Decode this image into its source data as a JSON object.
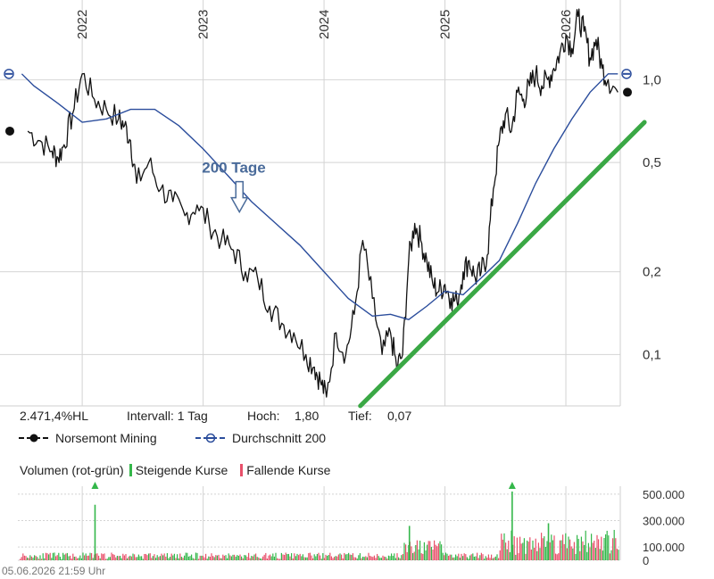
{
  "chart_data": {
    "type": "line",
    "y_scale": "log",
    "ylim": [
      0.07,
      1.8
    ],
    "x_tick_labels": [
      "2022",
      "2023",
      "2024",
      "2025",
      "2026"
    ],
    "y_tick_labels": [
      "1,0",
      "0,5",
      "0,2",
      "0,1"
    ],
    "y_tick_values": [
      1.0,
      0.5,
      0.2,
      0.1
    ],
    "grid": true,
    "series": [
      {
        "name": "Norsemont Mining",
        "color": "#111111",
        "x": [
          2021.55,
          2021.65,
          2021.75,
          2021.8,
          2021.85,
          2021.92,
          2022.0,
          2022.1,
          2022.2,
          2022.3,
          2022.35,
          2022.4,
          2022.45,
          2022.55,
          2022.65,
          2022.75,
          2022.85,
          2022.95,
          2023.05,
          2023.15,
          2023.25,
          2023.35,
          2023.45,
          2023.55,
          2023.65,
          2023.75,
          2023.85,
          2023.92,
          2023.97,
          2024.02,
          2024.1,
          2024.18,
          2024.25,
          2024.32,
          2024.4,
          2024.48,
          2024.55,
          2024.6,
          2024.65,
          2024.7,
          2024.75,
          2024.8,
          2024.85,
          2024.9,
          2024.95,
          2025.0,
          2025.05,
          2025.1,
          2025.15,
          2025.2,
          2025.25,
          2025.3,
          2025.35,
          2025.4,
          2025.45,
          2025.5,
          2025.55,
          2025.6,
          2025.65,
          2025.7,
          2025.75,
          2025.8,
          2025.85,
          2025.9,
          2025.95,
          2026.0,
          2026.05,
          2026.1,
          2026.15,
          2026.2,
          2026.25,
          2026.3,
          2026.35,
          2026.43
        ],
        "values": [
          0.65,
          0.6,
          0.55,
          0.52,
          0.58,
          0.75,
          1.05,
          0.85,
          0.78,
          0.72,
          0.68,
          0.6,
          0.42,
          0.5,
          0.4,
          0.36,
          0.32,
          0.35,
          0.3,
          0.26,
          0.24,
          0.2,
          0.19,
          0.15,
          0.13,
          0.12,
          0.1,
          0.09,
          0.08,
          0.07,
          0.12,
          0.1,
          0.14,
          0.26,
          0.16,
          0.1,
          0.12,
          0.09,
          0.1,
          0.22,
          0.3,
          0.26,
          0.22,
          0.18,
          0.17,
          0.18,
          0.16,
          0.155,
          0.2,
          0.22,
          0.19,
          0.2,
          0.23,
          0.4,
          0.6,
          0.75,
          0.65,
          0.9,
          0.85,
          0.95,
          1.05,
          0.95,
          1.0,
          1.1,
          1.25,
          1.45,
          1.3,
          1.7,
          1.5,
          1.2,
          1.4,
          1.1,
          1.0,
          0.9
        ]
      },
      {
        "name": "Durchschnitt 200",
        "color": "#2b4d9c",
        "x": [
          2021.5,
          2021.6,
          2021.8,
          2022.0,
          2022.2,
          2022.4,
          2022.6,
          2022.8,
          2023.0,
          2023.2,
          2023.4,
          2023.6,
          2023.8,
          2024.0,
          2024.2,
          2024.4,
          2024.55,
          2024.7,
          2024.85,
          2025.0,
          2025.15,
          2025.3,
          2025.45,
          2025.6,
          2025.75,
          2025.9,
          2026.05,
          2026.2,
          2026.35,
          2026.43
        ],
        "values": [
          1.05,
          0.95,
          0.82,
          0.7,
          0.72,
          0.78,
          0.78,
          0.68,
          0.56,
          0.45,
          0.36,
          0.3,
          0.25,
          0.2,
          0.16,
          0.138,
          0.14,
          0.134,
          0.15,
          0.17,
          0.165,
          0.19,
          0.22,
          0.3,
          0.42,
          0.56,
          0.72,
          0.9,
          1.05,
          1.05
        ]
      }
    ],
    "trendline": {
      "x": [
        2024.3,
        2026.65
      ],
      "values": [
        0.065,
        0.7
      ],
      "color": "#3aa845"
    },
    "annotation": {
      "text": "200 Tage",
      "color": "#4a6b9a",
      "x": 2023.3,
      "value": 0.33
    },
    "volume": {
      "title": "Volumen (rot-grün)",
      "tick_labels": [
        "500.000",
        "300.000",
        "100.000",
        "0"
      ],
      "tick_values": [
        500000,
        300000,
        100000,
        0
      ],
      "ymax": 560000,
      "peaks": [
        {
          "x": 2022.1,
          "value": 420000,
          "color": "#34b74a"
        },
        {
          "x": 2024.7,
          "value": 260000,
          "color": "#34b74a"
        },
        {
          "x": 2025.55,
          "value": 520000,
          "color": "#34b74a"
        },
        {
          "x": 2025.85,
          "value": 280000,
          "color": "#34b74a"
        }
      ]
    }
  },
  "info": {
    "change": "2.471,4%HL",
    "interval": "Intervall: 1 Tag",
    "high_label": "Hoch:",
    "high_value": "1,80",
    "low_label": "Tief:",
    "low_value": "0,07"
  },
  "legend": {
    "price_label": "Norsemont Mining",
    "avg_label": "Durchschnitt 200"
  },
  "volume_legend": {
    "title": "Volumen (rot-grün)",
    "rising": "Steigende Kurse",
    "falling": "Fallende Kurse",
    "rising_color": "#34b74a",
    "falling_color": "#e8506a"
  },
  "timestamp": "05.06.2026 21:59 Uhr"
}
